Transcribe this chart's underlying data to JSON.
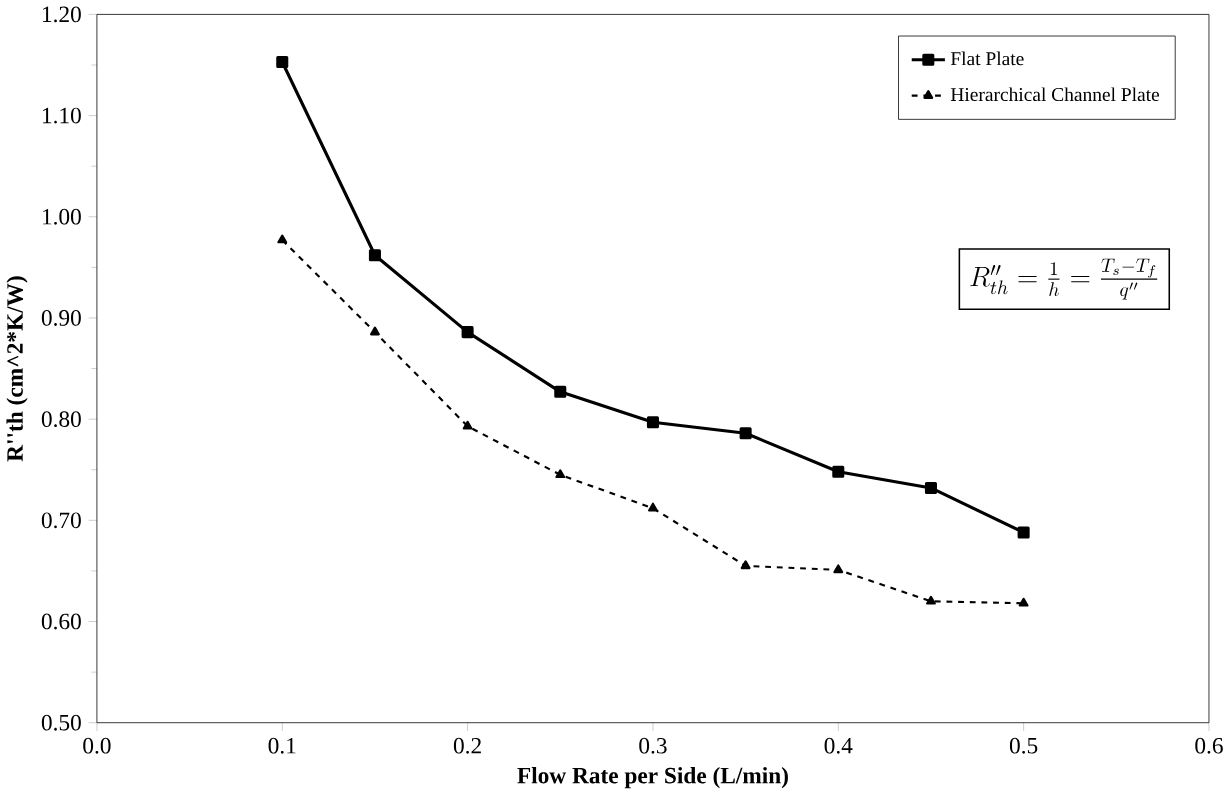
{
  "chart_data": {
    "type": "line",
    "xlabel": "Flow Rate per Side (L/min)",
    "ylabel": "R''th (cm^2*K/W)",
    "x": [
      0.1,
      0.15,
      0.2,
      0.25,
      0.3,
      0.35,
      0.4,
      0.45,
      0.5
    ],
    "series": [
      {
        "name": "Flat Plate",
        "color": "#000000",
        "marker": "square",
        "line_style": "solid",
        "values": [
          1.153,
          0.962,
          0.886,
          0.827,
          0.797,
          0.786,
          0.748,
          0.732,
          0.688
        ]
      },
      {
        "name": "Hierarchical Channel Plate",
        "color": "#000000",
        "marker": "triangle",
        "line_style": "dashed",
        "values": [
          0.977,
          0.886,
          0.793,
          0.745,
          0.712,
          0.655,
          0.651,
          0.62,
          0.618
        ]
      }
    ],
    "xlim": [
      0,
      0.6
    ],
    "xticks": [
      {
        "value": 0,
        "label": "0.0"
      },
      {
        "value": 0.1,
        "label": "0.1"
      },
      {
        "value": 0.2,
        "label": "0.2"
      },
      {
        "value": 0.3,
        "label": "0.3"
      },
      {
        "value": 0.4,
        "label": "0.4"
      },
      {
        "value": 0.5,
        "label": "0.5"
      },
      {
        "value": 0.6,
        "label": "0.6"
      }
    ],
    "ylim": [
      0.5,
      1.2
    ],
    "yticks": [
      {
        "value": 0.5,
        "label": "0.50"
      },
      {
        "value": 0.6,
        "label": "0.60"
      },
      {
        "value": 0.7,
        "label": "0.70"
      },
      {
        "value": 0.8,
        "label": "0.80"
      },
      {
        "value": 0.9,
        "label": "0.90"
      },
      {
        "value": 1.0,
        "label": "1.00"
      },
      {
        "value": 1.1,
        "label": "1.10"
      },
      {
        "value": 1.2,
        "label": "1.20"
      }
    ],
    "legend": "top right",
    "grid": false,
    "annotations": [
      "R''_{th}=\\frac{1}{h}=\\frac{T_s-T_f}{q''}"
    ]
  }
}
